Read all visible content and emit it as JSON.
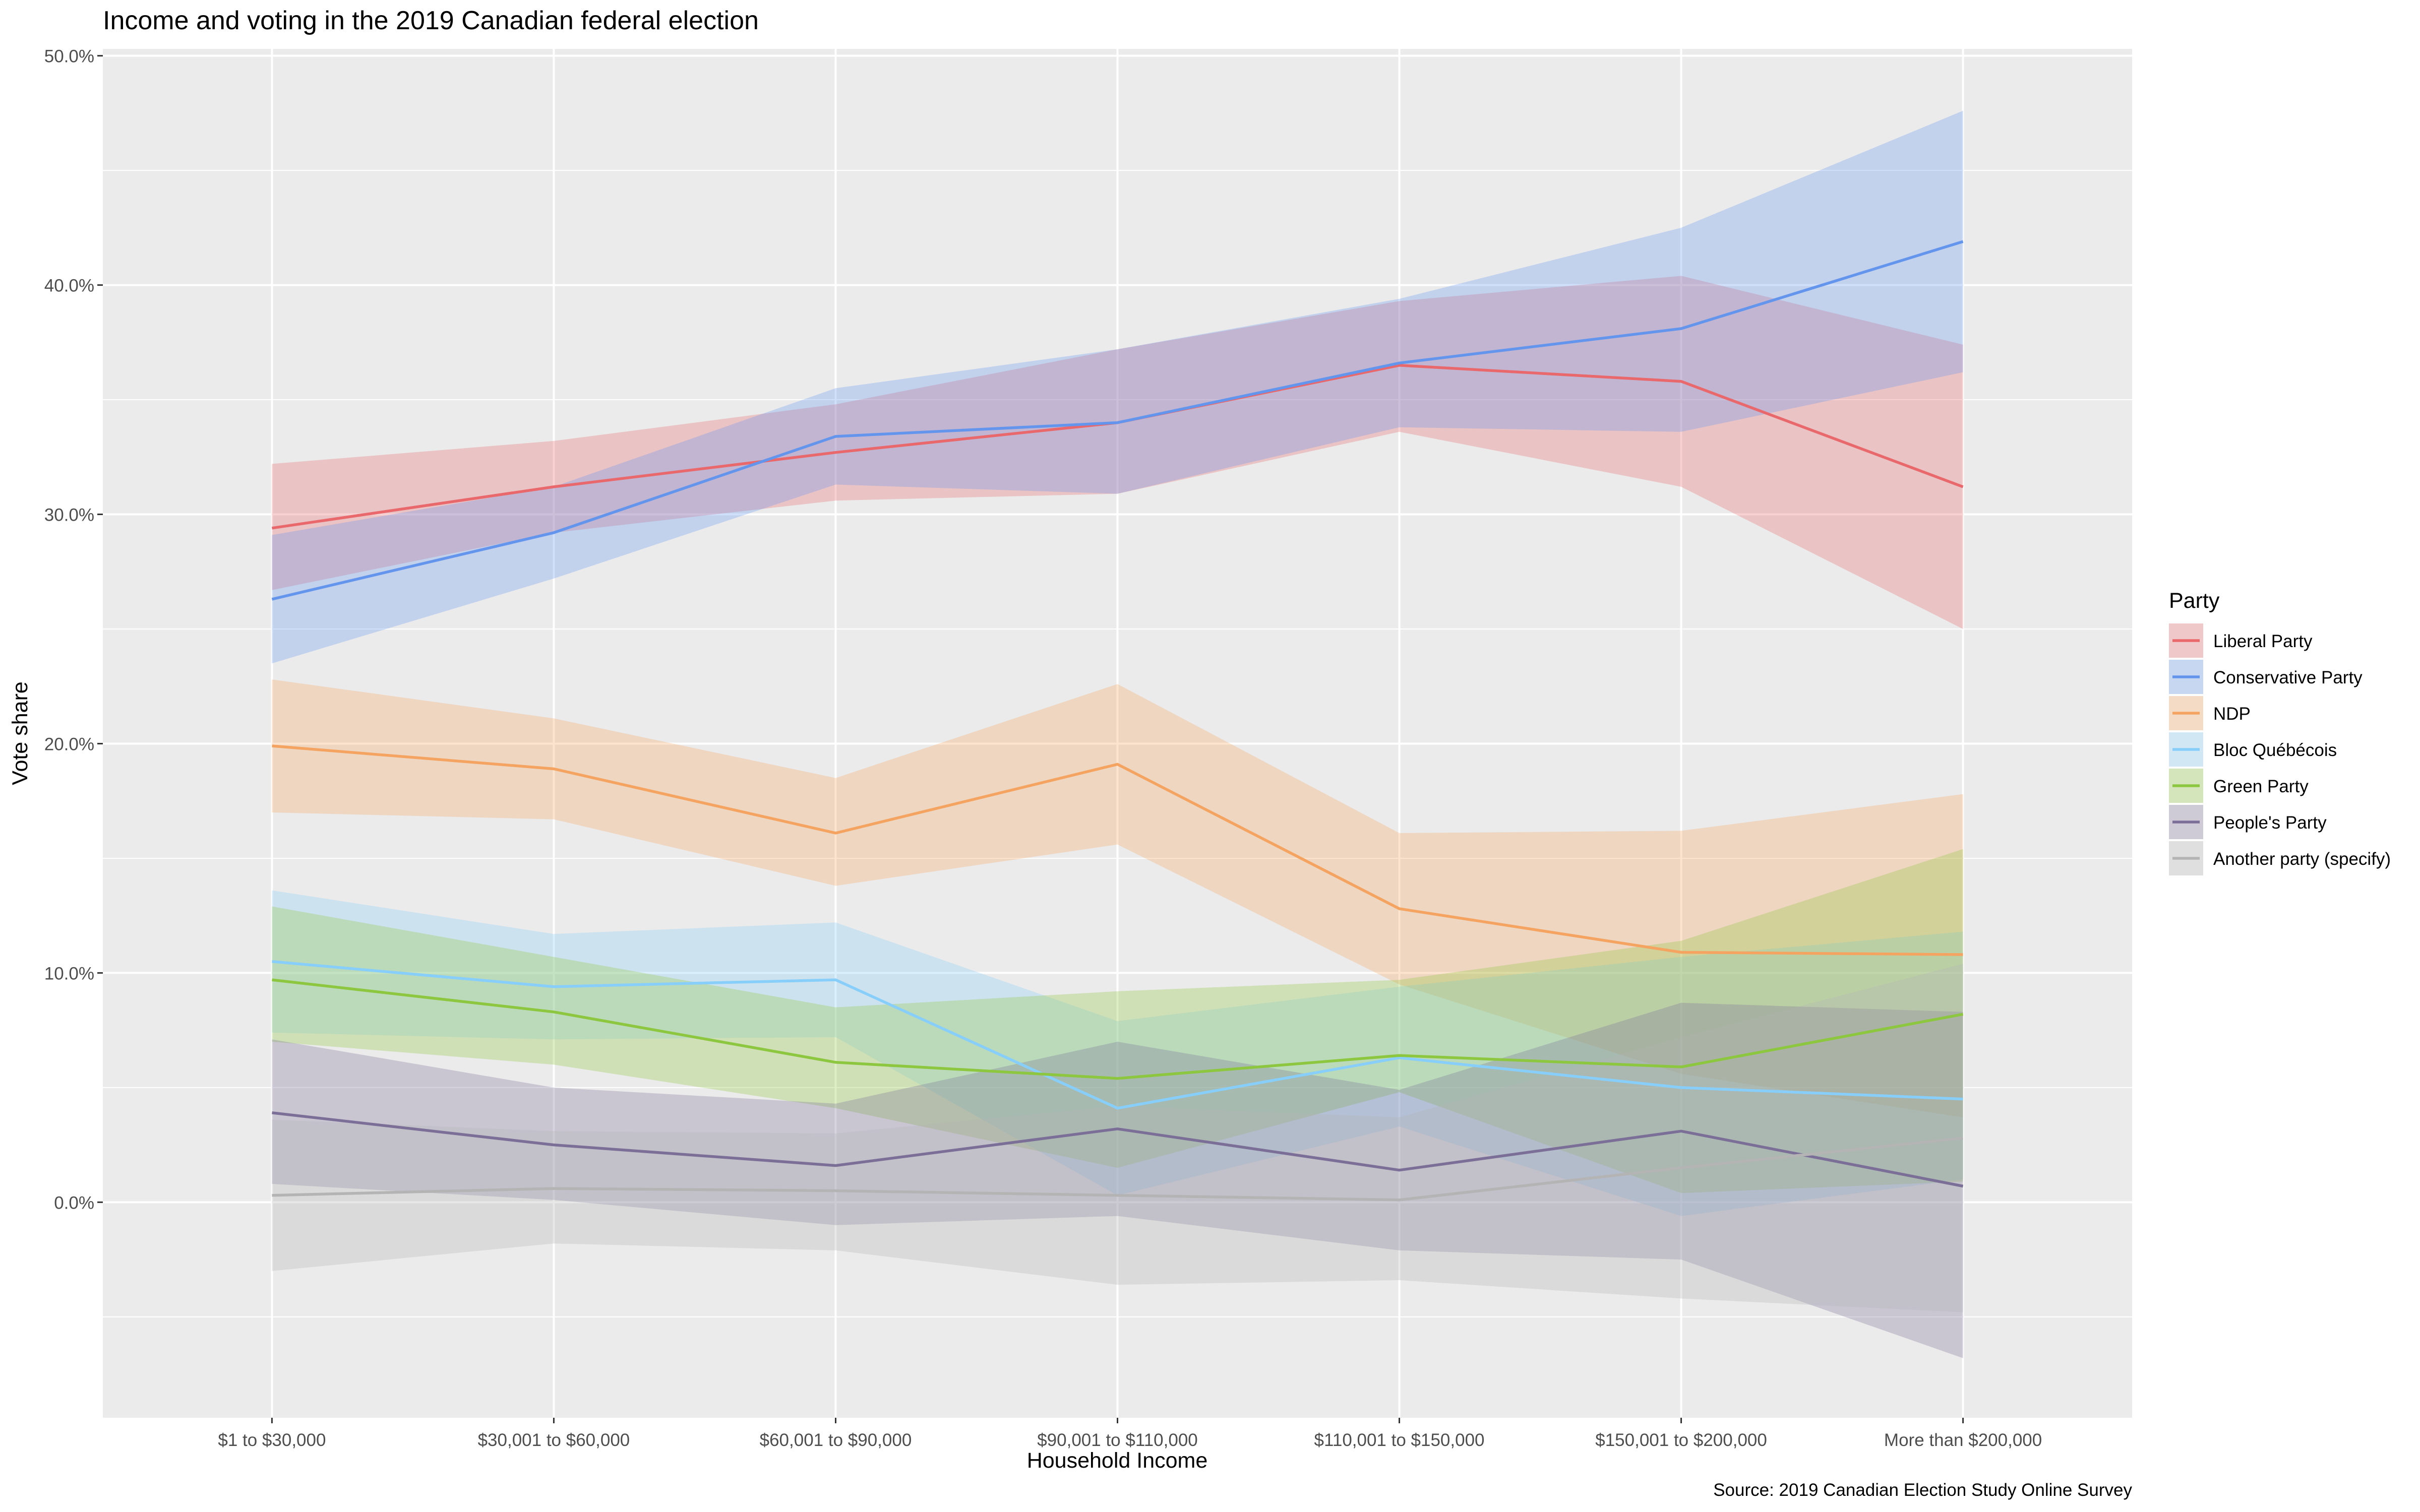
{
  "chart_data": {
    "type": "line",
    "title": "Income and voting in the 2019 Canadian federal election",
    "xlabel": "Household Income",
    "ylabel": "Vote share",
    "caption": "Source: 2019 Canadian Election Study Online Survey",
    "categories": [
      "$1 to $30,000",
      "$30,001 to $60,000",
      "$60,001 to $90,000",
      "$90,001 to $110,000",
      "$110,001 to $150,000",
      "$150,001 to $200,000",
      "More than $200,000"
    ],
    "ylim": [
      -9.4,
      50.3
    ],
    "yticks": [
      0,
      10,
      20,
      30,
      40,
      50
    ],
    "ytick_labels": [
      "0.0%",
      "10.0%",
      "20.0%",
      "30.0%",
      "40.0%",
      "50.0%"
    ],
    "grid": true,
    "legend": {
      "title": "Party",
      "position": "right"
    },
    "series": [
      {
        "name": "Liberal Party",
        "color": "#e8686b",
        "values": [
          29.4,
          31.2,
          32.7,
          34.0,
          36.5,
          35.8,
          31.2
        ],
        "lower": [
          26.7,
          29.2,
          30.6,
          30.9,
          33.6,
          31.2,
          25.0
        ],
        "upper": [
          32.2,
          33.2,
          34.8,
          37.2,
          39.3,
          40.4,
          37.4
        ]
      },
      {
        "name": "Conservative Party",
        "color": "#6495ed",
        "values": [
          26.3,
          29.2,
          33.4,
          34.0,
          36.6,
          38.1,
          41.9
        ],
        "lower": [
          23.5,
          27.2,
          31.3,
          30.9,
          33.8,
          33.6,
          36.2
        ],
        "upper": [
          29.1,
          31.2,
          35.5,
          37.2,
          39.4,
          42.5,
          47.6
        ]
      },
      {
        "name": "NDP",
        "color": "#f4a460",
        "values": [
          19.9,
          18.9,
          16.1,
          19.1,
          12.8,
          10.9,
          10.8
        ],
        "lower": [
          17.0,
          16.7,
          13.8,
          15.6,
          9.5,
          5.6,
          3.7
        ],
        "upper": [
          22.8,
          21.1,
          18.5,
          22.6,
          16.1,
          16.2,
          17.8
        ]
      },
      {
        "name": "Bloc Québécois",
        "color": "#87cefa",
        "values": [
          10.5,
          9.4,
          9.7,
          4.1,
          6.3,
          5.0,
          4.5
        ],
        "lower": [
          7.4,
          7.1,
          7.2,
          0.3,
          3.3,
          -0.6,
          1.0
        ],
        "upper": [
          13.6,
          11.7,
          12.2,
          7.9,
          9.4,
          10.7,
          11.8
        ]
      },
      {
        "name": "Green Party",
        "color": "#8dc63f",
        "values": [
          9.7,
          8.3,
          6.1,
          5.4,
          6.4,
          5.9,
          8.2
        ],
        "lower": [
          7.0,
          6.0,
          4.1,
          1.5,
          4.8,
          0.4,
          0.9
        ],
        "upper": [
          12.9,
          10.7,
          8.5,
          9.2,
          9.7,
          11.4,
          15.4
        ]
      },
      {
        "name": "People's Party",
        "color": "#7b6f98",
        "values": [
          3.9,
          2.5,
          1.6,
          3.2,
          1.4,
          3.1,
          0.7
        ],
        "lower": [
          0.8,
          0.1,
          -1.0,
          -0.6,
          -2.1,
          -2.5,
          -6.8
        ],
        "upper": [
          7.1,
          5.0,
          4.3,
          7.0,
          4.9,
          8.7,
          8.3
        ]
      },
      {
        "name": "Another party (specify)",
        "color": "#b4b4b4",
        "values": [
          0.3,
          0.6,
          0.5,
          0.3,
          0.1,
          1.5,
          2.8
        ],
        "lower": [
          -3.0,
          -1.8,
          -2.1,
          -3.6,
          -3.4,
          -4.2,
          -4.8
        ],
        "upper": [
          3.6,
          3.1,
          3.0,
          4.2,
          3.7,
          7.2,
          10.4
        ]
      }
    ]
  }
}
